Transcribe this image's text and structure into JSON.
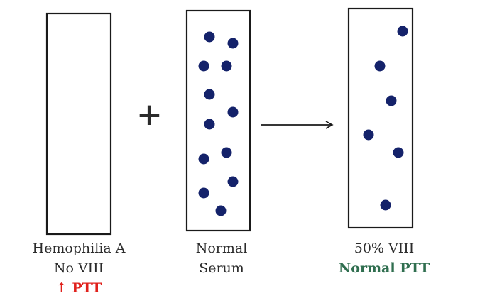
{
  "tubes": [
    {
      "name": "hemophilia-tube",
      "dots": 0,
      "caption": [
        "Hemophilia A",
        "No VIII"
      ],
      "result": "↑ PTT",
      "result_color": "#e0201b"
    },
    {
      "name": "normal-serum-tube",
      "dots": 13,
      "caption": [
        "Normal",
        "Serum"
      ],
      "result": ""
    },
    {
      "name": "mixed-tube",
      "dots": 6,
      "caption": [
        "50% VIII"
      ],
      "result": "Normal PTT",
      "result_color": "#2f6e4f"
    }
  ],
  "operator": "+",
  "dot_color": "#14226a",
  "outline_color": "#1a1a1a"
}
